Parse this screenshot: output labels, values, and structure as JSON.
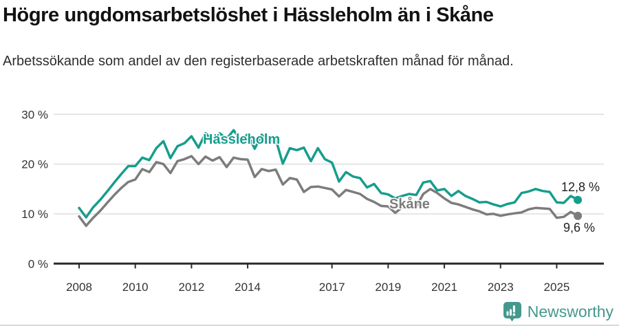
{
  "header": {
    "title": "Högre ungdomsarbetslöshet i Hässleholm än i Skåne",
    "subtitle": "Arbetssökande som andel av den registerbaserade arbetskraften månad för månad."
  },
  "chart_data": {
    "type": "line",
    "title": "Högre ungdomsarbetslöshet i Hässleholm än i Skåne",
    "xlabel": "",
    "ylabel": "",
    "unit": "%",
    "grid": "horizontal",
    "xlim": [
      2007.6,
      2026.8
    ],
    "ylim": [
      0,
      31
    ],
    "x_ticks": [
      2008,
      2010,
      2012,
      2014,
      2017,
      2019,
      2021,
      2023,
      2025
    ],
    "x_tick_labels": [
      "2008",
      "2010",
      "2012",
      "2014",
      "2017",
      "2019",
      "2021",
      "2023",
      "2025"
    ],
    "y_ticks": [
      0,
      10,
      20,
      30
    ],
    "y_tick_labels": [
      "0 %",
      "10 %",
      "20 %",
      "30 %"
    ],
    "x": [
      2008,
      2008.25,
      2008.5,
      2008.75,
      2009,
      2009.25,
      2009.5,
      2009.75,
      2010,
      2010.25,
      2010.5,
      2010.75,
      2011,
      2011.25,
      2011.5,
      2011.75,
      2012,
      2012.25,
      2012.5,
      2012.75,
      2013,
      2013.25,
      2013.5,
      2013.75,
      2014,
      2014.25,
      2014.5,
      2014.75,
      2015,
      2015.25,
      2015.5,
      2015.75,
      2016,
      2016.25,
      2016.5,
      2016.75,
      2017,
      2017.25,
      2017.5,
      2017.75,
      2018,
      2018.25,
      2018.5,
      2018.75,
      2019,
      2019.25,
      2019.5,
      2019.75,
      2020,
      2020.25,
      2020.5,
      2020.75,
      2021,
      2021.25,
      2021.5,
      2021.75,
      2022,
      2022.25,
      2022.5,
      2022.75,
      2023,
      2023.25,
      2023.5,
      2023.75,
      2024,
      2024.25,
      2024.5,
      2024.75,
      2025,
      2025.25,
      2025.5,
      2025.75
    ],
    "series": [
      {
        "name": "Hässleholm",
        "color": "#169d8d",
        "end_label": "12,8 %",
        "end_value": 12.8,
        "values": [
          11.2,
          9.3,
          11.3,
          12.8,
          14.5,
          16.3,
          18.0,
          19.6,
          19.6,
          21.3,
          20.8,
          23.2,
          24.6,
          21.2,
          23.6,
          24.2,
          25.6,
          23.3,
          26.2,
          24.8,
          26.2,
          25.1,
          26.8,
          24.8,
          26.0,
          23.1,
          25.9,
          24.4,
          25.0,
          20.1,
          23.2,
          22.8,
          23.3,
          20.6,
          23.2,
          21.0,
          20.3,
          16.5,
          18.4,
          17.5,
          17.2,
          15.3,
          16.0,
          14.2,
          13.9,
          13.1,
          13.6,
          14.0,
          13.8,
          16.3,
          16.6,
          14.7,
          15.0,
          13.6,
          14.6,
          13.6,
          13.0,
          12.3,
          12.4,
          11.9,
          11.5,
          12.0,
          12.3,
          14.2,
          14.5,
          15.0,
          14.6,
          14.4,
          12.3,
          12.2,
          13.6,
          12.8
        ]
      },
      {
        "name": "Skåne",
        "color": "#7c7c7c",
        "end_label": "9,6 %",
        "end_value": 9.6,
        "values": [
          9.5,
          7.6,
          9.2,
          10.6,
          12.2,
          13.8,
          15.2,
          16.4,
          16.9,
          19.0,
          18.4,
          20.4,
          20.0,
          18.2,
          20.6,
          21.0,
          21.6,
          20.0,
          21.5,
          20.7,
          21.4,
          19.4,
          21.3,
          21.0,
          20.9,
          17.4,
          19.0,
          18.6,
          18.9,
          15.9,
          17.2,
          16.9,
          14.4,
          15.4,
          15.5,
          15.2,
          14.9,
          13.5,
          14.8,
          14.4,
          14.0,
          13.0,
          12.4,
          11.6,
          11.5,
          10.2,
          11.3,
          11.5,
          11.4,
          14.0,
          15.0,
          14.2,
          13.1,
          12.2,
          11.9,
          11.4,
          10.9,
          10.5,
          9.9,
          10.0,
          9.6,
          9.9,
          10.1,
          10.3,
          10.9,
          11.2,
          11.1,
          11.0,
          9.2,
          9.4,
          10.4,
          9.6
        ]
      }
    ],
    "legend_position": "inline-labels"
  },
  "colors": {
    "accent_teal": "#169d8d",
    "series_gray": "#7c7c7c",
    "grid": "#dddddd",
    "axis": "#2b2b2b",
    "tick_text": "#333333",
    "value_text": "#222222",
    "logo_teal": "#45988e"
  },
  "footer": {
    "brand": "Newsworthy"
  }
}
